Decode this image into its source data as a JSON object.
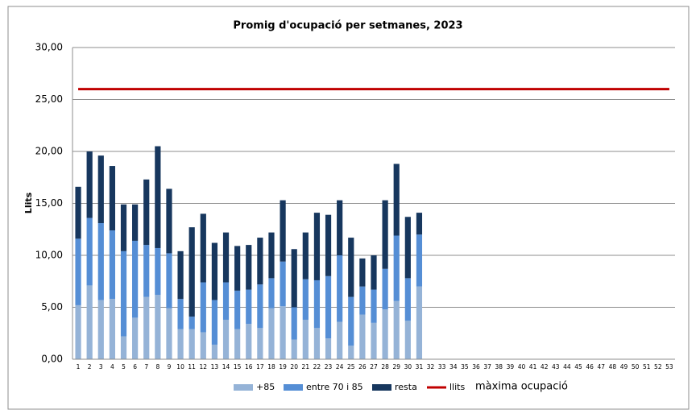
{
  "chart_data": {
    "type": "bar",
    "stacked": true,
    "title": "Promig d'ocupació per setmanes, 2023",
    "y_label": "Llits",
    "annotation": "màxima ocupació",
    "categories": [
      "1",
      "2",
      "3",
      "4",
      "5",
      "6",
      "7",
      "8",
      "9",
      "10",
      "11",
      "12",
      "13",
      "14",
      "15",
      "16",
      "17",
      "18",
      "19",
      "20",
      "21",
      "22",
      "23",
      "24",
      "25",
      "26",
      "27",
      "28",
      "29",
      "30",
      "31",
      "32",
      "33",
      "34",
      "35",
      "36",
      "37",
      "38",
      "39",
      "40",
      "41",
      "42",
      "43",
      "44",
      "45",
      "46",
      "47",
      "48",
      "49",
      "50",
      "51",
      "52",
      "53"
    ],
    "series": [
      {
        "name": "+85",
        "color": "#95b3d7",
        "values": [
          5.2,
          7.1,
          5.7,
          5.8,
          2.2,
          4.0,
          6.0,
          6.2,
          4.9,
          2.9,
          2.9,
          2.6,
          1.4,
          3.8,
          2.9,
          3.4,
          3.0,
          4.9,
          5.1,
          1.9,
          3.8,
          3.0,
          2.0,
          3.6,
          1.3,
          4.3,
          3.5,
          4.8,
          5.6,
          3.7,
          7.0,
          null,
          null,
          null,
          null,
          null,
          null,
          null,
          null,
          null,
          null,
          null,
          null,
          null,
          null,
          null,
          null,
          null,
          null,
          null,
          null,
          null,
          null
        ]
      },
      {
        "name": "entre 70 i 85",
        "color": "#558ed5",
        "values": [
          6.4,
          6.5,
          7.4,
          6.6,
          8.2,
          7.4,
          5.0,
          4.5,
          5.3,
          2.9,
          1.2,
          4.8,
          4.3,
          3.6,
          3.7,
          3.3,
          4.2,
          2.9,
          4.3,
          3.1,
          3.9,
          4.6,
          6.0,
          6.4,
          4.7,
          2.7,
          3.2,
          3.9,
          6.3,
          4.1,
          5.0,
          null,
          null,
          null,
          null,
          null,
          null,
          null,
          null,
          null,
          null,
          null,
          null,
          null,
          null,
          null,
          null,
          null,
          null,
          null,
          null,
          null,
          null
        ]
      },
      {
        "name": "resta",
        "color": "#17375e",
        "values": [
          5.0,
          6.4,
          6.5,
          6.2,
          4.5,
          3.5,
          6.3,
          9.8,
          6.2,
          4.6,
          8.6,
          6.6,
          5.5,
          4.8,
          4.3,
          4.3,
          4.5,
          4.4,
          5.9,
          5.6,
          4.5,
          6.5,
          5.9,
          5.3,
          5.7,
          2.7,
          3.3,
          6.6,
          6.9,
          5.9,
          2.1,
          null,
          null,
          null,
          null,
          null,
          null,
          null,
          null,
          null,
          null,
          null,
          null,
          null,
          null,
          null,
          null,
          null,
          null,
          null,
          null,
          null,
          null
        ]
      },
      {
        "name": "llits",
        "type": "line",
        "color": "#c00000",
        "values": [
          26,
          26,
          26,
          26,
          26,
          26,
          26,
          26,
          26,
          26,
          26,
          26,
          26,
          26,
          26,
          26,
          26,
          26,
          26,
          26,
          26,
          26,
          26,
          26,
          26,
          26,
          26,
          26,
          26,
          26,
          26,
          26,
          26,
          26,
          26,
          26,
          26,
          26,
          26,
          26,
          26,
          26,
          26,
          26,
          26,
          26,
          26,
          26,
          26,
          26,
          26,
          26,
          26
        ]
      }
    ],
    "ylim": [
      0,
      30
    ],
    "yticks": [
      {
        "value": 0,
        "label": "0,00"
      },
      {
        "value": 5,
        "label": "5,00"
      },
      {
        "value": 10,
        "label": "10,00"
      },
      {
        "value": 15,
        "label": "15,00"
      },
      {
        "value": 20,
        "label": "20,00"
      },
      {
        "value": 25,
        "label": "25,00"
      },
      {
        "value": 30,
        "label": "30,00"
      }
    ],
    "grid": true,
    "legend": "bottom"
  }
}
